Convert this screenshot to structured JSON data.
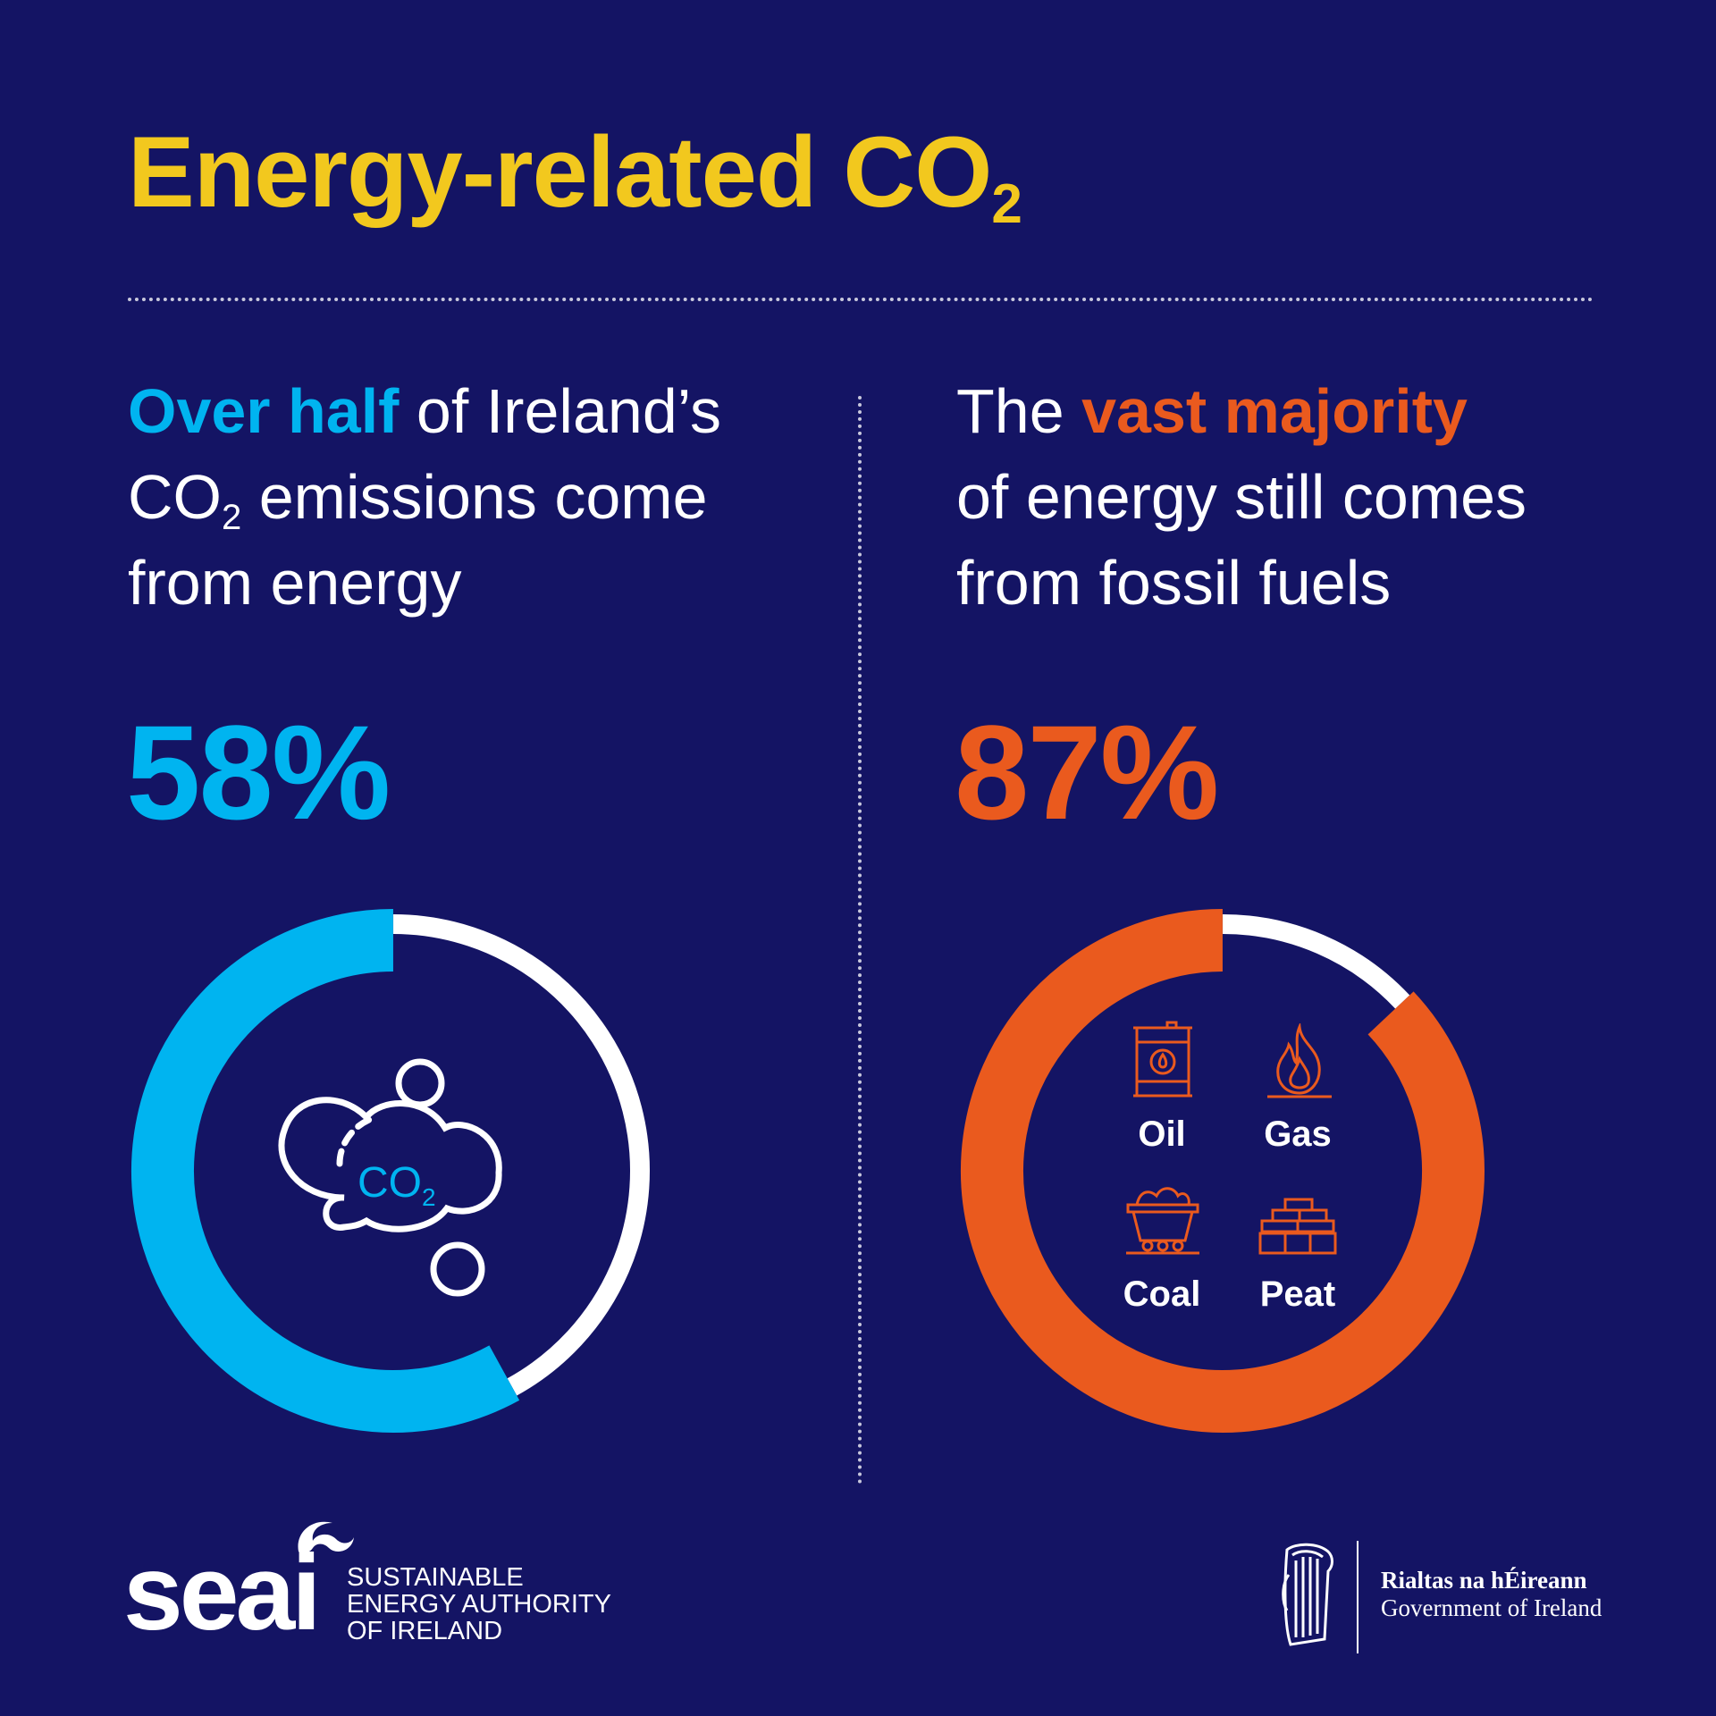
{
  "title": {
    "main": "Energy-related CO",
    "sub": "2"
  },
  "left": {
    "heading": {
      "highlight": "Over half",
      "line1_rest": " of Ireland’s",
      "line2_pre": "CO",
      "line2_sub": "2",
      "line2_post": " emissions come",
      "line3": "from energy"
    },
    "value_label": "58%",
    "center_icon": {
      "name": "co2-cloud-icon",
      "text": "CO",
      "sub": "2"
    }
  },
  "right": {
    "heading": {
      "pre": "The ",
      "highlight": "vast majority",
      "line2": "of energy still comes",
      "line3": "from fossil fuels"
    },
    "value_label": "87%",
    "fuels": [
      {
        "label": "Oil",
        "icon": "oil-barrel-icon"
      },
      {
        "label": "Gas",
        "icon": "gas-flame-icon"
      },
      {
        "label": "Coal",
        "icon": "coal-cart-icon"
      },
      {
        "label": "Peat",
        "icon": "peat-bricks-icon"
      }
    ]
  },
  "chart_data": [
    {
      "type": "pie",
      "subtype": "donut",
      "values": [
        58,
        42
      ],
      "colors": [
        "#00b4f0",
        "#ffffff"
      ],
      "value_label": "58%"
    },
    {
      "type": "pie",
      "subtype": "donut",
      "values": [
        87,
        13
      ],
      "colors": [
        "#ea5a1e",
        "#ffffff"
      ],
      "value_label": "87%"
    }
  ],
  "footer": {
    "seai_logo": "seai",
    "seai_tagline": "SUSTAINABLE\nENERGY AUTHORITY\nOF IRELAND",
    "gov_line1": "Rialtas na hÉireann",
    "gov_line2": "Government of Ireland"
  },
  "colors": {
    "background": "#141464",
    "title": "#f2c81e",
    "blue": "#00b4f0",
    "orange": "#ea5a1e",
    "track": "#ffffff"
  }
}
